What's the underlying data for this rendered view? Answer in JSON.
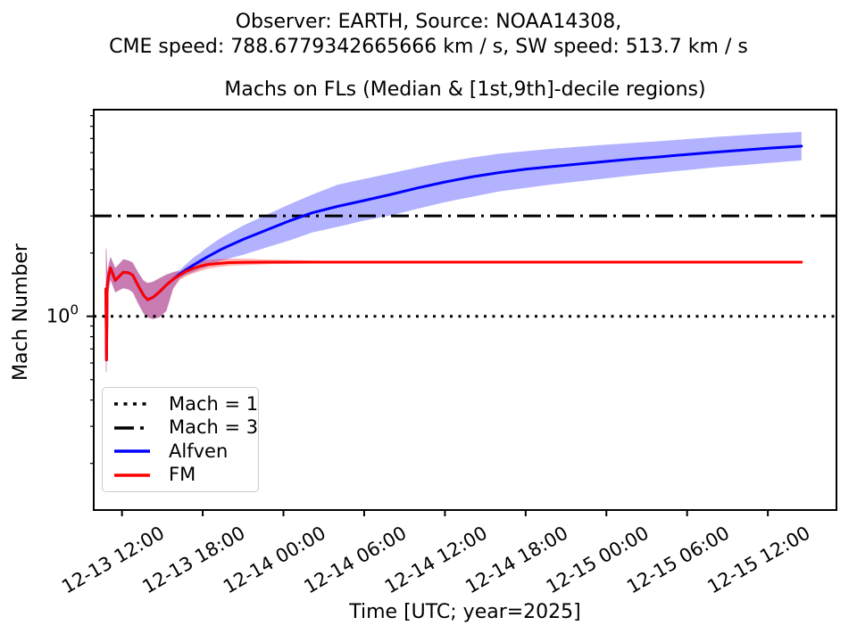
{
  "header": {
    "line1": "Observer: EARTH, Source: NOAA14308,",
    "line2": "CME speed: 788.6779342665666 km / s, SW speed: 513.7 km / s"
  },
  "chart_data": {
    "type": "line",
    "title": "Machs on FLs (Median & [1st,9th]-decile regions)",
    "xlabel": "Time [UTC; year=2025]",
    "ylabel": "Mach Number",
    "yscale": "log",
    "ylim": [
      0.12,
      9.6
    ],
    "xlim_hours": [
      9.9,
      65.1
    ],
    "x_unit": "hours since 2025-12-13 00:00 UTC",
    "grid": false,
    "legend_position": "lower left",
    "x_ticks": [
      {
        "hour": 12,
        "label": "12-13 12:00"
      },
      {
        "hour": 18,
        "label": "12-13 18:00"
      },
      {
        "hour": 24,
        "label": "12-14 00:00"
      },
      {
        "hour": 30,
        "label": "12-14 06:00"
      },
      {
        "hour": 36,
        "label": "12-14 12:00"
      },
      {
        "hour": 42,
        "label": "12-14 18:00"
      },
      {
        "hour": 48,
        "label": "12-15 00:00"
      },
      {
        "hour": 54,
        "label": "12-15 06:00"
      },
      {
        "hour": 60,
        "label": "12-15 12:00"
      }
    ],
    "y_major_tick": {
      "value": 1,
      "base": "10",
      "exponent": "0"
    },
    "y_minor_ticks": [
      0.2,
      0.3,
      0.4,
      0.5,
      0.6,
      0.7,
      0.8,
      0.9,
      2,
      3,
      4,
      5,
      6,
      7,
      8,
      9
    ],
    "reference_lines": [
      {
        "name": "Mach = 1",
        "value": 1,
        "style": "dotted",
        "color": "#000000"
      },
      {
        "name": "Mach = 3",
        "value": 3,
        "style": "dashdot",
        "color": "#000000"
      }
    ],
    "series": [
      {
        "name": "Alfven",
        "color": "#0000ff",
        "band_alpha": 0.3,
        "t": [
          10.8,
          10.85,
          10.9,
          11.0,
          11.15,
          11.5,
          11.8,
          12.1,
          12.5,
          12.8,
          13.2,
          13.6,
          13.9,
          14.3,
          14.8,
          15.3,
          15.8,
          16.3,
          16.8,
          17.3,
          17.8,
          18.3,
          19.0,
          19.5,
          21.0,
          22.8,
          24.5,
          26.1,
          28.0,
          30.0,
          32.0,
          34.0,
          36.0,
          38.0,
          40.0,
          42.0,
          44.0,
          46.0,
          48.0,
          50.0,
          52.0,
          54.0,
          56.0,
          58.0,
          60.0,
          62.5
        ],
        "median": [
          1.35,
          0.62,
          1.4,
          1.55,
          1.7,
          1.48,
          1.55,
          1.62,
          1.61,
          1.57,
          1.4,
          1.26,
          1.2,
          1.23,
          1.31,
          1.41,
          1.5,
          1.59,
          1.67,
          1.75,
          1.83,
          1.91,
          2.02,
          2.1,
          2.32,
          2.58,
          2.85,
          3.1,
          3.33,
          3.55,
          3.8,
          4.08,
          4.35,
          4.6,
          4.82,
          5.0,
          5.15,
          5.3,
          5.45,
          5.6,
          5.73,
          5.88,
          6.02,
          6.16,
          6.29,
          6.44
        ],
        "lo": [
          0.545,
          0.545,
          1.2,
          1.32,
          1.49,
          1.3,
          1.33,
          1.36,
          1.34,
          1.3,
          1.15,
          1.03,
          0.99,
          0.97,
          0.99,
          1.06,
          1.35,
          1.52,
          1.58,
          1.62,
          1.68,
          1.72,
          1.8,
          1.85,
          1.96,
          2.13,
          2.3,
          2.5,
          2.66,
          2.85,
          3.02,
          3.25,
          3.49,
          3.7,
          3.92,
          4.08,
          4.24,
          4.38,
          4.53,
          4.68,
          4.82,
          4.96,
          5.1,
          5.22,
          5.35,
          5.51
        ],
        "hi": [
          2.1,
          2.1,
          1.62,
          1.75,
          1.92,
          1.7,
          1.78,
          1.87,
          1.84,
          1.8,
          1.62,
          1.48,
          1.44,
          1.46,
          1.52,
          1.58,
          1.62,
          1.66,
          1.78,
          1.9,
          2.0,
          2.12,
          2.28,
          2.39,
          2.7,
          3.05,
          3.42,
          3.78,
          4.22,
          4.5,
          4.79,
          5.1,
          5.42,
          5.68,
          5.93,
          6.1,
          6.26,
          6.4,
          6.55,
          6.68,
          6.81,
          6.96,
          7.11,
          7.25,
          7.38,
          7.53
        ]
      },
      {
        "name": "FM",
        "color": "#ff0000",
        "band_alpha": 0.3,
        "t": [
          10.8,
          10.85,
          10.9,
          11.0,
          11.15,
          11.5,
          11.8,
          12.1,
          12.5,
          12.8,
          13.2,
          13.6,
          13.9,
          14.3,
          14.8,
          15.3,
          15.8,
          16.3,
          16.8,
          17.3,
          17.8,
          18.3,
          19.0,
          20.0,
          21.0,
          23.0,
          25.0,
          28.0,
          32.0,
          36.0,
          40.0,
          45.0,
          50.0,
          55.0,
          60.0,
          62.5
        ],
        "median": [
          1.35,
          0.62,
          1.4,
          1.55,
          1.7,
          1.48,
          1.55,
          1.62,
          1.61,
          1.57,
          1.4,
          1.26,
          1.2,
          1.23,
          1.31,
          1.41,
          1.5,
          1.57,
          1.64,
          1.69,
          1.73,
          1.76,
          1.78,
          1.8,
          1.805,
          1.81,
          1.81,
          1.81,
          1.81,
          1.81,
          1.81,
          1.81,
          1.81,
          1.81,
          1.81,
          1.81
        ],
        "lo": [
          0.545,
          0.545,
          1.2,
          1.32,
          1.49,
          1.3,
          1.33,
          1.36,
          1.34,
          1.3,
          1.15,
          1.03,
          0.99,
          0.97,
          0.99,
          1.06,
          1.35,
          1.49,
          1.56,
          1.6,
          1.64,
          1.68,
          1.71,
          1.74,
          1.75,
          1.77,
          1.78,
          1.79,
          1.8,
          1.803,
          1.806,
          1.807,
          1.808,
          1.808,
          1.808,
          1.808
        ],
        "hi": [
          2.1,
          2.1,
          1.62,
          1.75,
          1.92,
          1.7,
          1.78,
          1.87,
          1.84,
          1.8,
          1.62,
          1.48,
          1.44,
          1.46,
          1.52,
          1.58,
          1.62,
          1.64,
          1.72,
          1.78,
          1.82,
          1.85,
          1.87,
          1.88,
          1.88,
          1.86,
          1.85,
          1.83,
          1.82,
          1.817,
          1.814,
          1.813,
          1.812,
          1.812,
          1.812,
          1.812
        ]
      }
    ],
    "legend": [
      {
        "label": "Mach = 1",
        "style": "dotted",
        "color": "#000000"
      },
      {
        "label": "Mach = 3",
        "style": "dashdot",
        "color": "#000000"
      },
      {
        "label": "Alfven",
        "style": "solid",
        "color": "#0000ff"
      },
      {
        "label": "FM",
        "style": "solid",
        "color": "#ff0000"
      }
    ]
  }
}
